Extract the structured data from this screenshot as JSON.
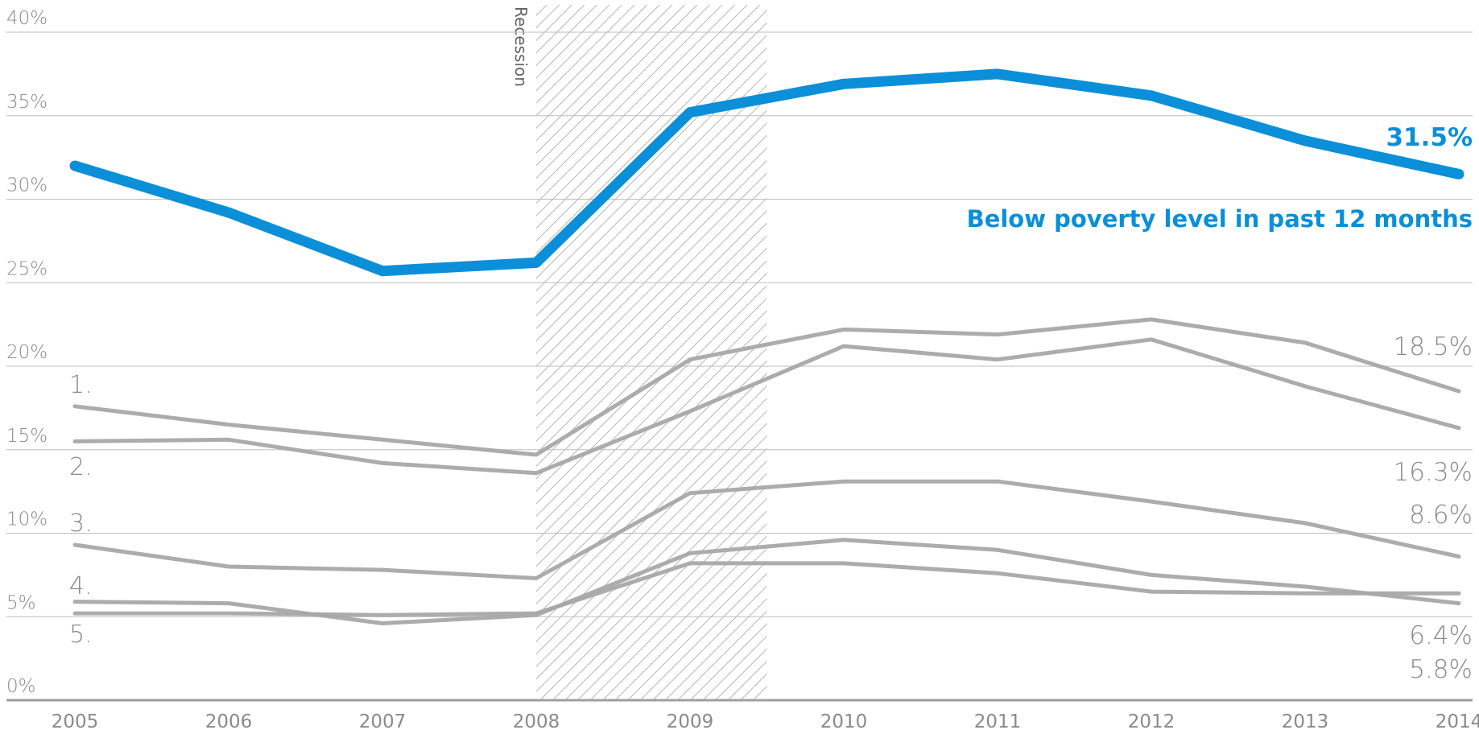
{
  "chart_data": {
    "type": "line",
    "x": [
      "2005",
      "2006",
      "2007",
      "2008",
      "2009",
      "2010",
      "2011",
      "2012",
      "2013",
      "2014"
    ],
    "ylim": [
      0,
      40
    ],
    "yticks": [
      "0%",
      "5%",
      "10%",
      "15%",
      "20%",
      "25%",
      "30%",
      "35%",
      "40%"
    ],
    "grid": true,
    "recession": {
      "label": "Recession",
      "start": 2008,
      "end": 2009.5
    },
    "series": [
      {
        "name": "Below poverty level in past 12 months",
        "end_label": "31.5%",
        "color": "#0a8fd8",
        "highlight": true,
        "values": [
          32.0,
          29.2,
          25.7,
          26.2,
          35.2,
          36.9,
          37.5,
          36.2,
          33.5,
          31.5
        ]
      },
      {
        "num_label": "1.",
        "end_label": "18.5%",
        "color": "#a8a8a8",
        "values": [
          17.6,
          16.5,
          15.6,
          14.7,
          20.4,
          22.2,
          21.9,
          22.8,
          21.4,
          18.5
        ]
      },
      {
        "num_label": "2.",
        "end_label": "16.3%",
        "color": "#a8a8a8",
        "values": [
          15.5,
          15.6,
          14.2,
          13.6,
          17.3,
          21.2,
          20.4,
          21.6,
          18.8,
          16.3
        ]
      },
      {
        "num_label": "3.",
        "end_label": "8.6%",
        "color": "#a8a8a8",
        "values": [
          9.3,
          8.0,
          7.8,
          7.3,
          12.4,
          13.1,
          13.1,
          11.9,
          10.6,
          8.6
        ]
      },
      {
        "num_label": "4.",
        "end_label": "5.8%",
        "color": "#a8a8a8",
        "values": [
          5.9,
          5.8,
          4.6,
          5.1,
          8.8,
          9.6,
          9.0,
          7.5,
          6.8,
          5.8
        ]
      },
      {
        "num_label": "5.",
        "end_label": "6.4%",
        "color": "#a8a8a8",
        "values": [
          5.2,
          5.2,
          5.1,
          5.2,
          8.2,
          8.2,
          7.6,
          6.5,
          6.4,
          6.4
        ]
      }
    ]
  }
}
